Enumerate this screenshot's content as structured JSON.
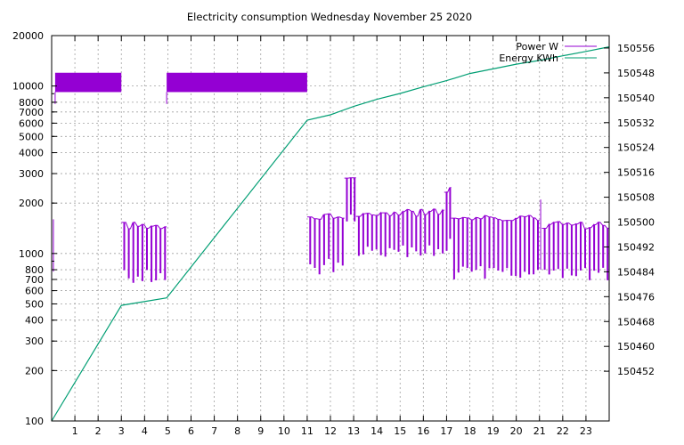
{
  "chart_data": {
    "type": "line",
    "title": "Electricity consumption Wednesday November 25 2020",
    "xlabel": "",
    "ylabel": "",
    "y2label": "",
    "grid": true,
    "legend_position": "top-right",
    "xlim": [
      0,
      24
    ],
    "x_ticks": [
      1,
      2,
      3,
      4,
      5,
      6,
      7,
      8,
      9,
      10,
      11,
      12,
      13,
      14,
      15,
      16,
      17,
      18,
      19,
      20,
      21,
      22,
      23
    ],
    "ylim": [
      100,
      20000
    ],
    "y_scale": "log",
    "y_ticks": [
      100,
      200,
      300,
      400,
      500,
      600,
      700,
      800,
      1000,
      2000,
      3000,
      4000,
      5000,
      6000,
      7000,
      8000,
      10000,
      20000
    ],
    "y2lim": [
      150436,
      150560
    ],
    "y2_ticks": [
      150452,
      150460,
      150468,
      150476,
      150484,
      150492,
      150500,
      150508,
      150516,
      150524,
      150532,
      150540,
      150548,
      150556
    ],
    "series": [
      {
        "name": "Power W",
        "axis": "left",
        "color": "#9400d3",
        "segments": [
          {
            "x_start": 0.0,
            "x_end": 0.15,
            "low": 780,
            "high": 1600,
            "pattern": "single-drop"
          },
          {
            "x_start": 0.15,
            "x_end": 3.0,
            "low": 9200,
            "high": 12000,
            "pattern": "dense-band"
          },
          {
            "x_start": 3.0,
            "x_end": 4.95,
            "low": 650,
            "high": 1550,
            "pattern": "oscillating"
          },
          {
            "x_start": 4.95,
            "x_end": 11.0,
            "low": 9200,
            "high": 12000,
            "pattern": "dense-band"
          },
          {
            "x_start": 11.0,
            "x_end": 12.6,
            "low": 750,
            "high": 1750,
            "pattern": "oscillating"
          },
          {
            "x_start": 12.6,
            "x_end": 13.1,
            "low": 1400,
            "high": 2900,
            "pattern": "oscillating"
          },
          {
            "x_start": 13.1,
            "x_end": 16.9,
            "low": 900,
            "high": 1850,
            "pattern": "oscillating"
          },
          {
            "x_start": 16.9,
            "x_end": 17.2,
            "low": 1000,
            "high": 2500,
            "pattern": "oscillating"
          },
          {
            "x_start": 17.2,
            "x_end": 21.0,
            "low": 700,
            "high": 1700,
            "pattern": "oscillating"
          },
          {
            "x_start": 21.0,
            "x_end": 21.1,
            "low": 800,
            "high": 2100,
            "pattern": "spike"
          },
          {
            "x_start": 21.1,
            "x_end": 24.0,
            "low": 680,
            "high": 1550,
            "pattern": "oscillating"
          }
        ]
      },
      {
        "name": "Energy KWh",
        "axis": "right",
        "color": "#009e73",
        "x": [
          0.0,
          3.0,
          4.95,
          11.0,
          12.0,
          13.0,
          14.0,
          15.0,
          16.0,
          17.0,
          18.0,
          19.0,
          20.0,
          21.0,
          22.0,
          23.0,
          24.0
        ],
        "y": [
          150436,
          150473.2,
          150475.6,
          150532.8,
          150534.5,
          150537.2,
          150539.5,
          150541.4,
          150543.5,
          150545.5,
          150547.8,
          150549.3,
          150550.8,
          150552.0,
          150553.5,
          150554.9,
          150556.4
        ]
      }
    ]
  }
}
